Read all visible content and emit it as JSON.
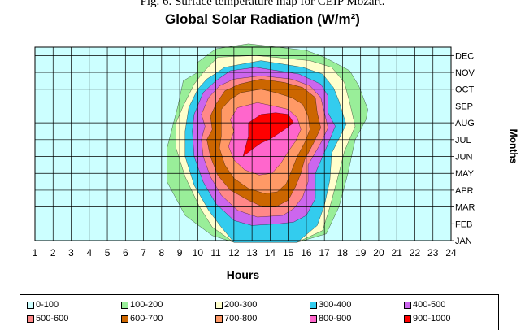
{
  "caption": "Fig. 6. Surface temperature map for CEIP Mozart.",
  "chart_data": {
    "type": "heatmap",
    "title": "Global Solar Radiation (W/m²)",
    "xlabel": "Hours",
    "ylabel": "Months",
    "x": [
      "1",
      "2",
      "3",
      "4",
      "5",
      "6",
      "7",
      "8",
      "9",
      "10",
      "11",
      "12",
      "13",
      "14",
      "15",
      "16",
      "17",
      "18",
      "19",
      "20",
      "21",
      "22",
      "23",
      "24"
    ],
    "y": [
      "JAN",
      "FEB",
      "MAR",
      "APR",
      "MAY",
      "JUN",
      "JUL",
      "AUG",
      "SEP",
      "OCT",
      "NOV",
      "DEC"
    ],
    "legend": [
      "0-100",
      "100-200",
      "200-300",
      "300-400",
      "400-500",
      "500-600",
      "600-700",
      "700-800",
      "800-900",
      "900-1000"
    ],
    "colors": [
      "#ccffff",
      "#99ee99",
      "#ffffcc",
      "#33ccee",
      "#cc66ee",
      "#ff8888",
      "#cc6600",
      "#ff9966",
      "#ff66cc",
      "#ff0000"
    ],
    "grid": true,
    "legend_position": "bottom",
    "contours": [
      {
        "band": "100-200",
        "color": "#99ee99",
        "bounds": [
          [
            10.0,
            10.0
          ],
          [
            9.2,
            9.5
          ],
          [
            8.9,
            8.0
          ],
          [
            8.3,
            5.5
          ],
          [
            8.3,
            3.5
          ],
          [
            9.3,
            1.5
          ],
          [
            10.8,
            0.3
          ],
          [
            12.0,
            -0.1
          ],
          [
            15.5,
            -0.1
          ],
          [
            17.1,
            0.4
          ],
          [
            17.8,
            2.0
          ],
          [
            18.3,
            4.0
          ],
          [
            18.7,
            6.0
          ],
          [
            19.3,
            7.2
          ],
          [
            19.4,
            7.8
          ],
          [
            18.9,
            9.2
          ],
          [
            18.4,
            10.1
          ],
          [
            17.0,
            10.9
          ],
          [
            16.0,
            11.3
          ],
          [
            12.8,
            11.7
          ],
          [
            11.0,
            11.4
          ],
          [
            10.0,
            10.6
          ]
        ]
      },
      {
        "band": "200-300",
        "color": "#ffffcc",
        "bounds": [
          [
            10.3,
            10.0
          ],
          [
            9.8,
            9.3
          ],
          [
            9.2,
            8.0
          ],
          [
            8.8,
            7.0
          ],
          [
            8.8,
            5.5
          ],
          [
            9.3,
            3.8
          ],
          [
            10.1,
            2.0
          ],
          [
            10.8,
            0.8
          ],
          [
            12.0,
            -0.1
          ],
          [
            15.5,
            -0.1
          ],
          [
            16.9,
            0.6
          ],
          [
            17.3,
            2.0
          ],
          [
            17.8,
            4.0
          ],
          [
            18.1,
            5.3
          ],
          [
            18.7,
            6.8
          ],
          [
            18.4,
            8.2
          ],
          [
            18.1,
            9.4
          ],
          [
            17.4,
            10.3
          ],
          [
            16.2,
            10.7
          ],
          [
            13.2,
            11.0
          ],
          [
            11.1,
            10.9
          ]
        ]
      },
      {
        "band": "300-400",
        "color": "#33ccee",
        "bounds": [
          [
            10.5,
            9.6
          ],
          [
            10.0,
            9.0
          ],
          [
            9.5,
            7.9
          ],
          [
            9.3,
            6.5
          ],
          [
            9.3,
            5.0
          ],
          [
            9.8,
            3.3
          ],
          [
            10.6,
            1.8
          ],
          [
            11.3,
            0.8
          ],
          [
            12.0,
            -0.1
          ],
          [
            15.5,
            -0.1
          ],
          [
            16.6,
            0.9
          ],
          [
            17.0,
            2.1
          ],
          [
            17.3,
            3.6
          ],
          [
            17.4,
            5.2
          ],
          [
            18.2,
            6.9
          ],
          [
            17.8,
            8.3
          ],
          [
            17.5,
            9.1
          ],
          [
            16.9,
            9.9
          ],
          [
            15.8,
            10.3
          ],
          [
            13.5,
            10.7
          ],
          [
            11.5,
            10.3
          ]
        ]
      },
      {
        "band": "400-500",
        "color": "#cc66ee",
        "bounds": [
          [
            11.0,
            9.5
          ],
          [
            10.3,
            8.8
          ],
          [
            9.8,
            7.5
          ],
          [
            9.7,
            6.5
          ],
          [
            9.8,
            5.0
          ],
          [
            10.3,
            3.5
          ],
          [
            11.0,
            2.2
          ],
          [
            12.0,
            1.2
          ],
          [
            13.0,
            0.9
          ],
          [
            14.5,
            1.0
          ],
          [
            15.3,
            1.1
          ],
          [
            16.0,
            1.5
          ],
          [
            16.5,
            2.5
          ],
          [
            16.5,
            4.0
          ],
          [
            17.1,
            5.5
          ],
          [
            17.6,
            6.8
          ],
          [
            17.2,
            7.6
          ],
          [
            17.2,
            8.6
          ],
          [
            16.8,
            9.3
          ],
          [
            15.6,
            9.9
          ],
          [
            13.2,
            10.3
          ],
          [
            11.8,
            10.1
          ]
        ]
      },
      {
        "band": "500-600",
        "color": "#ff8888",
        "bounds": [
          [
            11.2,
            9.2
          ],
          [
            10.6,
            8.5
          ],
          [
            10.2,
            7.5
          ],
          [
            10.4,
            6.8
          ],
          [
            10.2,
            6.0
          ],
          [
            10.3,
            5.0
          ],
          [
            10.7,
            3.8
          ],
          [
            11.3,
            2.7
          ],
          [
            12.2,
            1.8
          ],
          [
            13.3,
            1.4
          ],
          [
            14.7,
            1.5
          ],
          [
            15.3,
            1.9
          ],
          [
            15.8,
            2.6
          ],
          [
            16.1,
            3.5
          ],
          [
            16.1,
            4.5
          ],
          [
            16.8,
            5.8
          ],
          [
            17.2,
            6.7
          ],
          [
            17.0,
            7.6
          ],
          [
            16.8,
            8.5
          ],
          [
            16.2,
            9.2
          ],
          [
            15.2,
            9.6
          ],
          [
            13.5,
            9.8
          ],
          [
            12.0,
            9.6
          ]
        ]
      },
      {
        "band": "600-700",
        "color": "#cc6600",
        "bounds": [
          [
            11.5,
            8.9
          ],
          [
            11.0,
            8.1
          ],
          [
            10.7,
            7.4
          ],
          [
            10.8,
            6.6
          ],
          [
            10.5,
            6.0
          ],
          [
            10.7,
            5.0
          ],
          [
            11.1,
            3.9
          ],
          [
            11.8,
            3.0
          ],
          [
            12.8,
            2.4
          ],
          [
            13.6,
            2.0
          ],
          [
            14.3,
            2.0
          ],
          [
            15.0,
            2.4
          ],
          [
            15.4,
            3.2
          ],
          [
            15.7,
            4.0
          ],
          [
            15.9,
            4.8
          ],
          [
            16.4,
            5.8
          ],
          [
            16.8,
            6.7
          ],
          [
            16.6,
            7.6
          ],
          [
            16.5,
            8.5
          ],
          [
            15.8,
            9.1
          ],
          [
            14.8,
            9.4
          ],
          [
            13.5,
            9.6
          ],
          [
            12.3,
            9.3
          ]
        ]
      },
      {
        "band": "700-800",
        "color": "#ff9966",
        "bounds": [
          [
            11.8,
            8.4
          ],
          [
            11.3,
            7.8
          ],
          [
            11.3,
            7.0
          ],
          [
            11.3,
            6.2
          ],
          [
            11.2,
            5.5
          ],
          [
            11.5,
            4.5
          ],
          [
            12.0,
            3.7
          ],
          [
            12.8,
            3.1
          ],
          [
            13.7,
            2.8
          ],
          [
            14.4,
            2.9
          ],
          [
            14.9,
            3.4
          ],
          [
            15.2,
            4.2
          ],
          [
            15.5,
            5.0
          ],
          [
            15.9,
            5.8
          ],
          [
            16.2,
            6.6
          ],
          [
            16.1,
            7.4
          ],
          [
            15.8,
            8.1
          ],
          [
            15.2,
            8.5
          ],
          [
            14.3,
            8.8
          ],
          [
            13.5,
            9.0
          ],
          [
            12.4,
            8.8
          ]
        ]
      },
      {
        "band": "800-900",
        "color": "#ff66cc",
        "bounds": [
          [
            12.2,
            7.9
          ],
          [
            11.8,
            7.2
          ],
          [
            12.0,
            6.5
          ],
          [
            11.7,
            5.6
          ],
          [
            12.0,
            4.8
          ],
          [
            12.6,
            4.2
          ],
          [
            13.4,
            3.9
          ],
          [
            14.1,
            4.0
          ],
          [
            14.6,
            4.6
          ],
          [
            15.0,
            5.3
          ],
          [
            15.4,
            5.9
          ],
          [
            15.7,
            6.6
          ],
          [
            15.5,
            7.3
          ],
          [
            15.0,
            7.8
          ],
          [
            14.2,
            8.0
          ],
          [
            13.3,
            8.2
          ]
        ]
      },
      {
        "band": "900-1000",
        "color": "#ff0000",
        "bounds": [
          [
            12.8,
            7.0
          ],
          [
            12.8,
            6.2
          ],
          [
            12.5,
            5.0
          ],
          [
            13.1,
            5.5
          ],
          [
            13.5,
            5.8
          ],
          [
            14.1,
            6.1
          ],
          [
            14.8,
            6.6
          ],
          [
            15.3,
            7.0
          ],
          [
            15.0,
            7.5
          ],
          [
            14.3,
            7.6
          ],
          [
            13.5,
            7.5
          ]
        ]
      }
    ]
  }
}
